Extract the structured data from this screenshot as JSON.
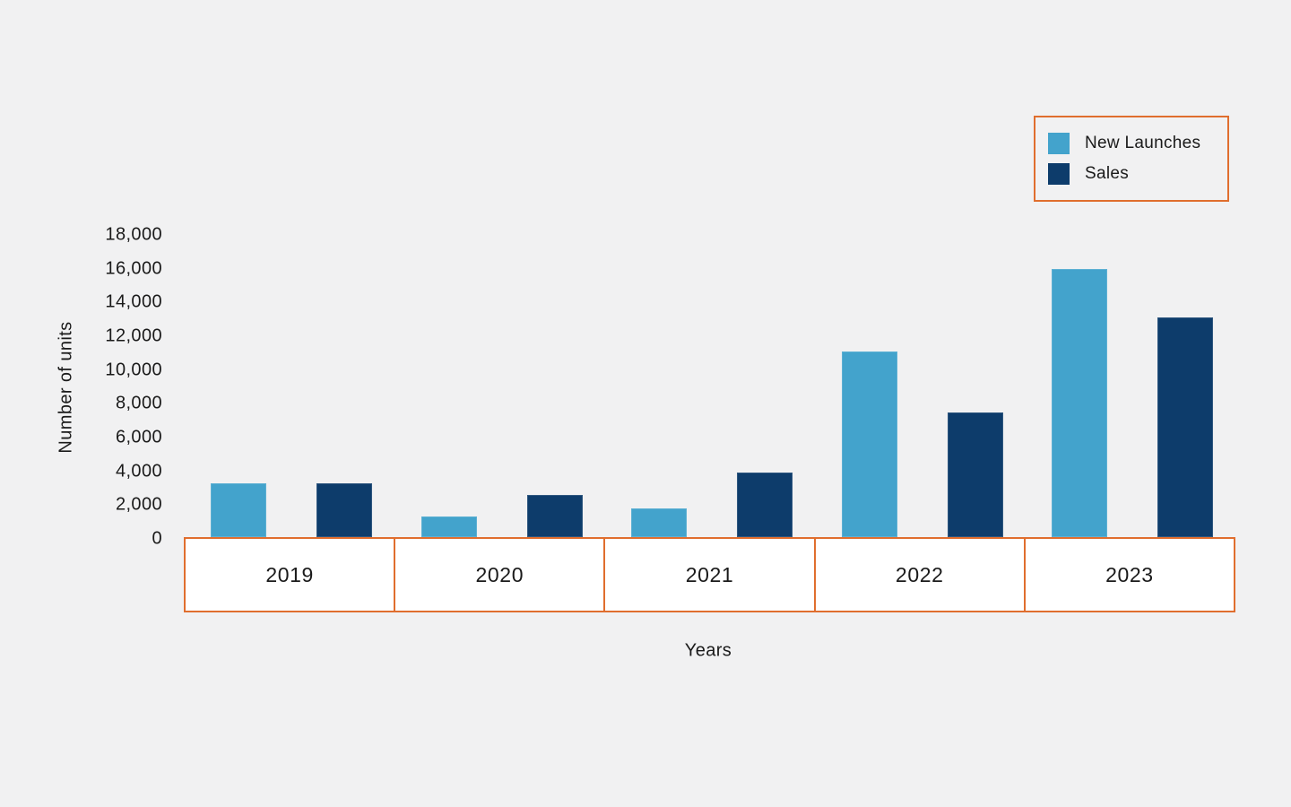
{
  "canvas": {
    "background": "#F1F1F2",
    "text_color": "#1A1A1A",
    "accent_orange": "#E06E2E"
  },
  "legend": {
    "border_color": "#E06E2E",
    "position": "top-right",
    "items": [
      {
        "label": "New Launches",
        "color": "#43A3CC"
      },
      {
        "label": "Sales",
        "color": "#0D3C6B"
      }
    ]
  },
  "chart_data": {
    "type": "bar",
    "title": "",
    "xlabel": "Years",
    "ylabel": "Number of units",
    "categories": [
      "2019",
      "2020",
      "2021",
      "2022",
      "2023"
    ],
    "series": [
      {
        "name": "New Launches",
        "color": "#43A3CC",
        "values": [
          3200,
          1200,
          1700,
          11000,
          15900
        ]
      },
      {
        "name": "Sales",
        "color": "#0D3C6B",
        "values": [
          3200,
          2500,
          3800,
          7400,
          13000
        ]
      }
    ],
    "ylim": [
      0,
      18000
    ],
    "ytick_step": 2000,
    "ytick_labels": [
      "0",
      "2,000",
      "4,000",
      "6,000",
      "8,000",
      "10,000",
      "12,000",
      "14,000",
      "16,000",
      "18,000"
    ],
    "grid": false,
    "legend_position": "top-right",
    "x_axis_style": "boxed-cells",
    "x_cell_fill": "#FFFFFF",
    "x_border_color": "#E06E2E"
  }
}
